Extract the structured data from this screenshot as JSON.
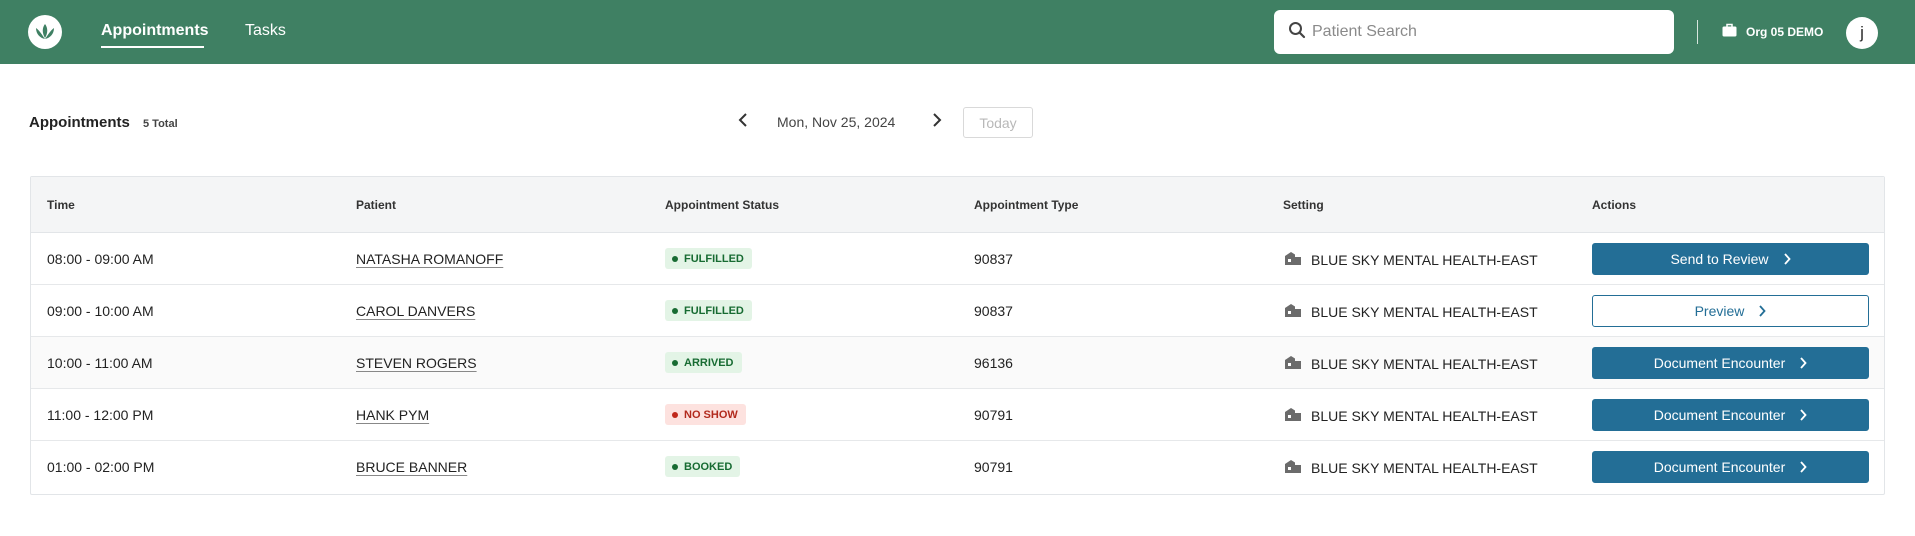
{
  "nav": {
    "tabs": [
      "Appointments",
      "Tasks"
    ]
  },
  "search": {
    "placeholder": "Patient Search"
  },
  "org": {
    "label": "Org 05 DEMO"
  },
  "user": {
    "initial": "j"
  },
  "header": {
    "title": "Appointments",
    "total": "5 Total",
    "date": "Mon, Nov 25, 2024",
    "today_label": "Today"
  },
  "table": {
    "columns": [
      "Time",
      "Patient",
      "Appointment Status",
      "Appointment Type",
      "Setting",
      "Actions"
    ],
    "rows": [
      {
        "time": "08:00 - 09:00 AM",
        "patient": "NATASHA ROMANOFF",
        "status": "FULFILLED",
        "type": "90837",
        "setting": "BLUE SKY MENTAL HEALTH-EAST",
        "action": "Send to Review"
      },
      {
        "time": "09:00 - 10:00 AM",
        "patient": "CAROL DANVERS",
        "status": "FULFILLED",
        "type": "90837",
        "setting": "BLUE SKY MENTAL HEALTH-EAST",
        "action": "Preview"
      },
      {
        "time": "10:00 - 11:00 AM",
        "patient": "STEVEN ROGERS",
        "status": "ARRIVED",
        "type": "96136",
        "setting": "BLUE SKY MENTAL HEALTH-EAST",
        "action": "Document Encounter"
      },
      {
        "time": "11:00 - 12:00 PM",
        "patient": "HANK PYM",
        "status": "NO SHOW",
        "type": "90791",
        "setting": "BLUE SKY MENTAL HEALTH-EAST",
        "action": "Document Encounter"
      },
      {
        "time": "01:00 - 02:00 PM",
        "patient": "BRUCE BANNER",
        "status": "BOOKED",
        "type": "90791",
        "setting": "BLUE SKY MENTAL HEALTH-EAST",
        "action": "Document Encounter"
      }
    ]
  },
  "colors": {
    "topbar": "#3f8063",
    "primary_button": "#236e96",
    "status_ok_bg": "#e3f4e6",
    "status_ok_text": "#176b32",
    "status_bad_bg": "#fde2df",
    "status_bad_text": "#b22a1d"
  },
  "icons": {
    "logo": "lotus-logo-icon",
    "search": "search-icon",
    "org": "briefcase-icon",
    "prev": "chevron-left-icon",
    "next": "chevron-right-icon",
    "setting": "building-icon",
    "action": "chevron-right-icon"
  }
}
